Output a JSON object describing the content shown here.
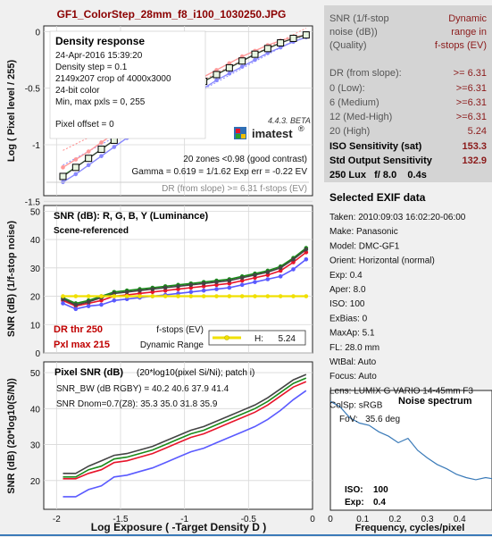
{
  "title": "GF1_ColorStep_28mm_f8_i100_1030250.JPG",
  "colors": {
    "title": "#8b0000",
    "red": "#e8142a",
    "green": "#1a8a1a",
    "blue": "#5a5aff",
    "gray": "#666666",
    "dr_text": "#c00000",
    "yellow": "#f0e000",
    "sidebar_bg": "#d4d4d4",
    "accent_red": "#8b1a1a"
  },
  "sidebar": {
    "header_left": [
      "SNR (1/f-stop",
      "noise (dB))",
      "(Quality)"
    ],
    "header_right": [
      "Dynamic",
      "range in",
      "f-stops (EV)"
    ],
    "rows": [
      {
        "label": "DR (from slope):",
        "value": ">= 6.31"
      },
      {
        "label": "0   (Low):",
        "value": ">=6.31"
      },
      {
        "label": "6   (Medium)",
        "value": ">=6.31"
      },
      {
        "label": "12 (Med-High)",
        "value": ">=6.31"
      },
      {
        "label": "20 (High)",
        "value": "5.24"
      }
    ],
    "iso_sat_label": "ISO Sensitivity (sat)",
    "iso_sat_value": "153.3",
    "sos_label": "Std Output Sensitivity",
    "sos_value": "132.9",
    "lux_line": "250 Lux   f/ 8.0    0.4s"
  },
  "exif": {
    "title": "Selected EXIF data",
    "lines": [
      "Taken: 2010:09:03 16:02:20-06:00",
      "Make:  Panasonic",
      "Model: DMC-GF1",
      "Orient: Horizontal (normal)",
      "Exp:  0.4",
      "Aper:  8.0",
      "ISO:  100",
      "ExBias: 0",
      "MaxAp: 5.1",
      "FL:  28.0 mm",
      "WtBal: Auto",
      "Focus:  Auto",
      "Lens:  LUMIX G VARIO 14-45mm F3",
      "ColSp: sRGB"
    ]
  },
  "noise_spectrum": {
    "title": "Noise spectrum",
    "fov": "FoV:   35.6 deg",
    "iso_label": "ISO:",
    "iso_value": "100",
    "exp_label": "Exp:",
    "exp_value": "0.4",
    "xlabel": "Frequency, cycles/pixel",
    "x_ticks": [
      "0",
      "0.1",
      "0.2",
      "0.3",
      "0.4"
    ]
  },
  "density_panel": {
    "title": "Density response",
    "info": [
      "24-Apr-2016 15:39:20",
      "Density step = 0.1",
      "2149x207 crop of 4000x3000",
      "24-bit color",
      "Min, max pxls = 0, 255"
    ],
    "pixel_offset": "Pixel offset = 0",
    "zones": "20 zones <0.98 (good contrast)",
    "gamma": "Gamma = 0.619 = 1/1.62  Exp err = -0.22 EV",
    "dr_note": "DR (from slope) >= 6.31 f-stops (EV)",
    "beta": "4.4.3. BETA",
    "logo": "imatest",
    "ylabel": "Log ( Pixel level / 255)",
    "y_ticks": [
      "0",
      "-0.5",
      "-1",
      "-1.5"
    ]
  },
  "snr_panel": {
    "title": "SNR (dB): R, G, B, Y (Luminance)",
    "subtitle": "Scene-referenced",
    "ylabel": "SNR (dB) (1/f-stop noise)",
    "y_ticks": [
      "50",
      "40",
      "30",
      "20",
      "10",
      "0"
    ],
    "dr_thr": "DR thr 250",
    "pxl_max": "Pxl max 215",
    "legend_fstops": "f-stops (EV)",
    "legend_dr": "Dynamic Range",
    "legend_h_label": "H:",
    "legend_h_value": "5.24"
  },
  "pixel_snr_panel": {
    "title": "Pixel SNR (dB)",
    "title_note": "(20*log10(pixel Si/Ni); patch i)",
    "bw": "SNR_BW (dB RGBY) = 40.2 40.6 37.9 41.4",
    "dnom": "SNR Dnom=0.7(Z8): 35.3 35.0 31.8 35.9",
    "ylabel": "SNR (dB) (20*log10(S/N))",
    "y_ticks": [
      "50",
      "40",
      "30",
      "20"
    ],
    "x_ticks": [
      "-2",
      "-1.5",
      "-1",
      "-0.5",
      "0"
    ],
    "xlabel": "Log Exposure ( -Target Density D )"
  },
  "chart_data": [
    {
      "type": "line",
      "title": "Density response",
      "xlabel": "",
      "ylabel": "Log ( Pixel level / 255)",
      "xlim": [
        -2.1,
        0
      ],
      "ylim": [
        -1.45,
        0.05
      ],
      "x": [
        -1.95,
        -1.85,
        -1.75,
        -1.65,
        -1.55,
        -1.45,
        -1.35,
        -1.25,
        -1.15,
        -1.05,
        -0.95,
        -0.85,
        -0.75,
        -0.65,
        -0.55,
        -0.45,
        -0.35,
        -0.25,
        -0.15,
        -0.05
      ],
      "series": [
        {
          "color": "#ff9999",
          "values": [
            -1.2,
            -1.13,
            -1.06,
            -0.98,
            -0.9,
            -0.82,
            -0.74,
            -0.67,
            -0.6,
            -0.53,
            -0.46,
            -0.4,
            -0.34,
            -0.28,
            -0.22,
            -0.17,
            -0.12,
            -0.08,
            -0.05,
            -0.03
          ]
        },
        {
          "color": "#66cc66",
          "values": [
            -1.27,
            -1.2,
            -1.12,
            -1.04,
            -0.96,
            -0.88,
            -0.8,
            -0.72,
            -0.65,
            -0.58,
            -0.51,
            -0.44,
            -0.38,
            -0.32,
            -0.26,
            -0.2,
            -0.15,
            -0.1,
            -0.06,
            -0.03
          ]
        },
        {
          "color": "#8888ff",
          "values": [
            -1.33,
            -1.26,
            -1.18,
            -1.1,
            -1.02,
            -0.94,
            -0.86,
            -0.78,
            -0.71,
            -0.64,
            -0.57,
            -0.5,
            -0.43,
            -0.37,
            -0.31,
            -0.25,
            -0.19,
            -0.14,
            -0.09,
            -0.05
          ]
        },
        {
          "color": "#333333",
          "values": [
            -1.28,
            -1.2,
            -1.12,
            -1.04,
            -0.96,
            -0.88,
            -0.8,
            -0.72,
            -0.65,
            -0.58,
            -0.51,
            -0.44,
            -0.38,
            -0.32,
            -0.26,
            -0.2,
            -0.15,
            -0.1,
            -0.06,
            -0.03
          ]
        }
      ]
    },
    {
      "type": "line",
      "title": "SNR (dB): R, G, B, Y (Luminance)",
      "ylabel": "SNR (dB) (1/f-stop noise)",
      "ylim": [
        0,
        52
      ],
      "xlim": [
        -2.1,
        0
      ],
      "x": [
        -1.95,
        -1.85,
        -1.75,
        -1.65,
        -1.55,
        -1.45,
        -1.35,
        -1.25,
        -1.15,
        -1.05,
        -0.95,
        -0.85,
        -0.75,
        -0.65,
        -0.55,
        -0.45,
        -0.35,
        -0.25,
        -0.15,
        -0.05
      ],
      "series": [
        {
          "color": "#e8142a",
          "values": [
            18.5,
            16.5,
            17.5,
            18.5,
            20,
            20.5,
            21,
            21.5,
            22,
            22.5,
            23,
            23.5,
            24,
            24.5,
            25.5,
            26.5,
            27.5,
            29,
            32,
            35.5
          ]
        },
        {
          "color": "#1a8a1a",
          "values": [
            19.5,
            17.5,
            18.5,
            20,
            21.5,
            22,
            22.5,
            23,
            23.5,
            24,
            24.5,
            25,
            25.5,
            26,
            27,
            28,
            29,
            30.5,
            33.5,
            37
          ]
        },
        {
          "color": "#5a5aff",
          "values": [
            17.5,
            15.5,
            16.5,
            17,
            18.5,
            19,
            19.5,
            20,
            20.5,
            21,
            21.5,
            22,
            22.5,
            23,
            24,
            25,
            26,
            27,
            29.5,
            33
          ]
        },
        {
          "color": "#444444",
          "values": [
            19,
            17,
            18,
            19.5,
            21,
            21.5,
            22,
            22.5,
            23,
            23.5,
            24,
            24.5,
            25,
            25.5,
            26.5,
            27.5,
            28.5,
            30,
            33,
            36.5
          ]
        },
        {
          "color": "#f0e000",
          "values": [
            20,
            20,
            20,
            20,
            20,
            20,
            20,
            20,
            20,
            20,
            20,
            20,
            20,
            20,
            20,
            20,
            20,
            20,
            20,
            20
          ]
        }
      ]
    },
    {
      "type": "line",
      "title": "Pixel SNR (dB)",
      "ylabel": "SNR (dB) (20*log10(S/N))",
      "xlabel": "Log Exposure ( -Target Density D )",
      "ylim": [
        12,
        53
      ],
      "xlim": [
        -2.1,
        0
      ],
      "x": [
        -1.95,
        -1.85,
        -1.75,
        -1.65,
        -1.55,
        -1.45,
        -1.35,
        -1.25,
        -1.15,
        -1.05,
        -0.95,
        -0.85,
        -0.75,
        -0.65,
        -0.55,
        -0.45,
        -0.35,
        -0.25,
        -0.15,
        -0.05
      ],
      "series": [
        {
          "color": "#e8142a",
          "values": [
            20.5,
            20.5,
            22,
            23,
            25,
            25.5,
            26.5,
            27.5,
            29,
            30.5,
            32,
            33,
            34.5,
            36,
            37.5,
            39,
            41,
            43.5,
            46,
            47.5
          ]
        },
        {
          "color": "#1a8a1a",
          "values": [
            21,
            21,
            23,
            24,
            26,
            26.5,
            27.5,
            28.5,
            30,
            31.5,
            33,
            34,
            35.5,
            37,
            38.5,
            40,
            42,
            44.5,
            47,
            48.5
          ]
        },
        {
          "color": "#5a5aff",
          "values": [
            15.5,
            15.5,
            17.5,
            18.5,
            21,
            21.5,
            22.5,
            23.5,
            25,
            26.5,
            28,
            29,
            30.5,
            32,
            33.5,
            35,
            37,
            39.5,
            42.5,
            45
          ]
        },
        {
          "color": "#444444",
          "values": [
            22,
            22,
            24,
            25.5,
            27,
            27.5,
            28.5,
            29.5,
            31,
            32.5,
            34,
            35,
            36.5,
            38,
            39.5,
            41,
            43,
            45.5,
            48,
            49.5
          ]
        }
      ]
    },
    {
      "type": "line",
      "title": "Noise spectrum",
      "xlabel": "Frequency, cycles/pixel",
      "xlim": [
        0,
        0.5
      ],
      "x": [
        0,
        0.03,
        0.06,
        0.09,
        0.12,
        0.15,
        0.18,
        0.21,
        0.24,
        0.27,
        0.3,
        0.33,
        0.36,
        0.39,
        0.42,
        0.45,
        0.48,
        0.5
      ],
      "series": [
        {
          "color": "#3a7ab8",
          "values": [
            1.0,
            0.95,
            0.85,
            0.8,
            0.78,
            0.72,
            0.68,
            0.62,
            0.66,
            0.55,
            0.48,
            0.42,
            0.38,
            0.33,
            0.3,
            0.28,
            0.3,
            0.29
          ]
        }
      ]
    }
  ]
}
